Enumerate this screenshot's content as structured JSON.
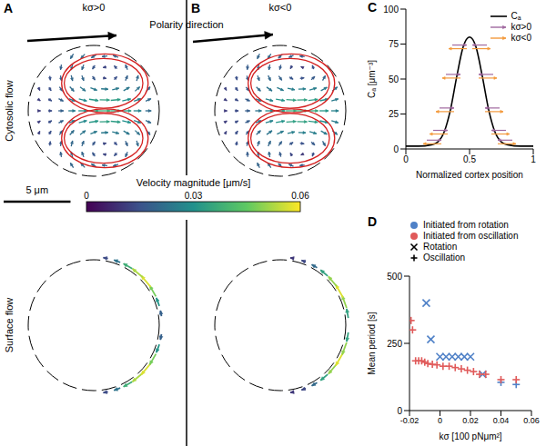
{
  "flow_panels": {
    "panel_labels": [
      "A",
      "B"
    ],
    "conditions": [
      "kσ>0",
      "kσ<0"
    ],
    "polarity_label": "Polarity direction",
    "row_labels": [
      "Cytosolic flow",
      "Surface flow"
    ],
    "colorbar": {
      "label": "Velocity magnitude [μm/s]",
      "range": [
        0,
        0.06
      ],
      "ticks": [
        0,
        0.03,
        0.06
      ]
    },
    "scale_bar": {
      "label": "5 μm",
      "length": 5
    }
  },
  "chart_data": [
    {
      "panel": "C",
      "type": "line",
      "xlabel": "Normalized cortex position",
      "ylabel": "Cₐ [μm⁻³]",
      "x": [
        0,
        0.1,
        0.2,
        0.25,
        0.3,
        0.35,
        0.4,
        0.45,
        0.5,
        0.55,
        0.6,
        0.65,
        0.7,
        0.75,
        0.8,
        0.9,
        1
      ],
      "series": [
        {
          "name": "Cₐ",
          "color": "#000000",
          "values": [
            2,
            2,
            3,
            5,
            12,
            28,
            52,
            73,
            80,
            73,
            52,
            28,
            12,
            5,
            3,
            2,
            2
          ]
        }
      ],
      "arrows": [
        {
          "name": "kσ>0",
          "color": "#a0689f",
          "direction": "inward"
        },
        {
          "name": "kσ<0",
          "color": "#f39a3d",
          "direction": "outward"
        }
      ],
      "xlim": [
        0,
        1
      ],
      "xticks": [
        0,
        0.5,
        1
      ],
      "ylim": [
        0,
        100
      ],
      "yticks": [
        0,
        25,
        50,
        75,
        100
      ],
      "legend": "top right"
    },
    {
      "panel": "D",
      "type": "scatter",
      "xlabel": "kσ [100 pNμm²]",
      "ylabel": "Mean period [s]",
      "series": [
        {
          "name": "Initiated from rotation",
          "color": "#4f81c7",
          "x": [
            -0.009,
            -0.006,
            0.0,
            0.004,
            0.008,
            0.012,
            0.016,
            0.02,
            0.028,
            0.04,
            0.05
          ],
          "values": [
            400,
            265,
            200,
            200,
            200,
            200,
            200,
            200,
            135,
            105,
            97
          ],
          "markers": [
            "x",
            "x",
            "x",
            "x",
            "x",
            "x",
            "x",
            "x",
            "x",
            "+",
            "+"
          ]
        },
        {
          "name": "Initiated from oscillation",
          "color": "#e05a5a",
          "x": [
            -0.019,
            -0.018,
            -0.016,
            -0.014,
            -0.012,
            -0.01,
            -0.008,
            -0.005,
            -0.002,
            0.002,
            0.006,
            0.01,
            0.014,
            0.018,
            0.022,
            0.026,
            0.03,
            0.04,
            0.05
          ],
          "values": [
            335,
            300,
            185,
            185,
            185,
            180,
            175,
            172,
            170,
            165,
            165,
            160,
            155,
            150,
            145,
            135,
            135,
            115,
            115
          ],
          "markers": [
            "+",
            "+",
            "+",
            "+",
            "+",
            "+",
            "+",
            "+",
            "+",
            "+",
            "+",
            "+",
            "+",
            "+",
            "+",
            "+",
            "+",
            "+",
            "+"
          ]
        }
      ],
      "marker_legend": [
        {
          "name": "Rotation",
          "marker": "x"
        },
        {
          "name": "Oscillation",
          "marker": "+"
        }
      ],
      "xlim": [
        -0.02,
        0.06
      ],
      "xticks": [
        -0.02,
        0,
        0.02,
        0.04,
        0.06
      ],
      "ylim": [
        0,
        500
      ],
      "yticks": [
        0,
        250,
        500
      ],
      "legend": "top"
    }
  ]
}
